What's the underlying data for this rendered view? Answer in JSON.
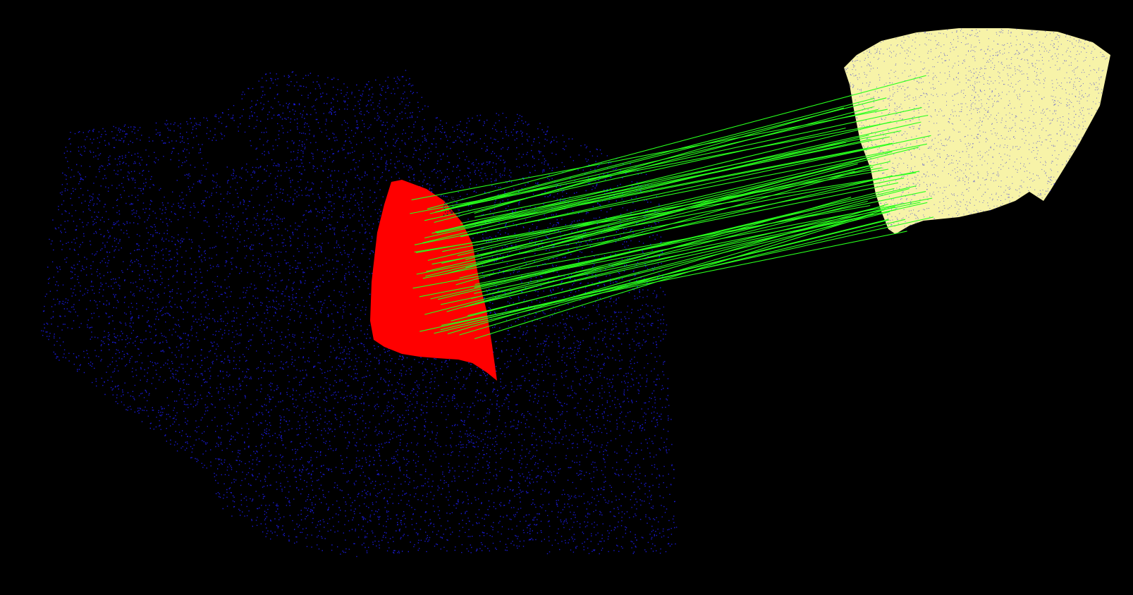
{
  "scene": {
    "background_color": "#000000",
    "scene_point_color": "#1a1ad6",
    "model_surface_color": "#f7f3a8",
    "model_point_color": "#3a3ad8",
    "matched_region_color": "#ff0000",
    "correspondence_line_color": "#27ff1c",
    "correspondence_count": 60
  }
}
